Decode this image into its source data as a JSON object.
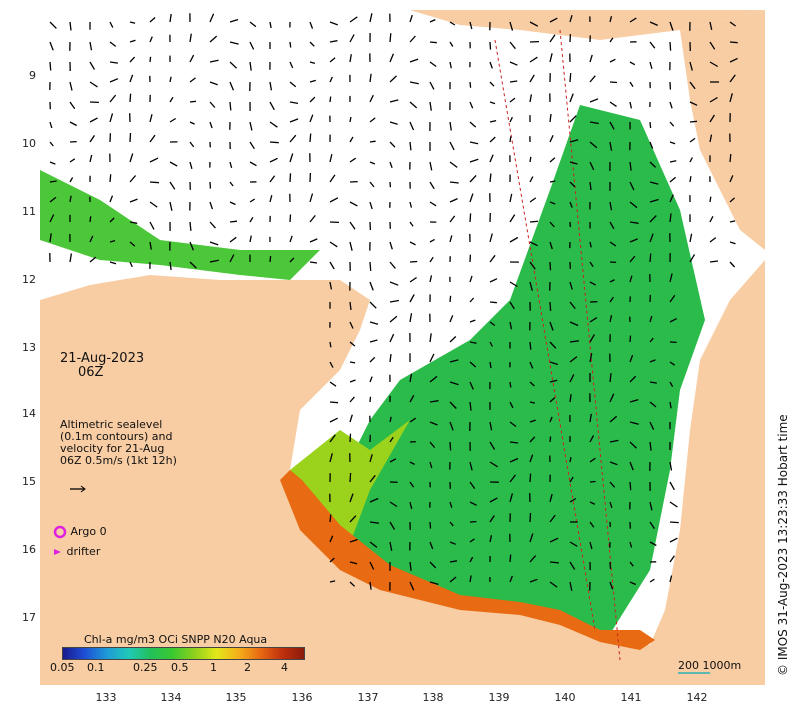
{
  "map": {
    "y_ticks": [
      "9",
      "10",
      "11",
      "12",
      "13",
      "14",
      "15",
      "16",
      "17"
    ],
    "x_ticks": [
      "133",
      "134",
      "135",
      "136",
      "137",
      "138",
      "139",
      "140",
      "141",
      "142"
    ],
    "colors": {
      "land": "#f8cda3",
      "cloud": "#ffffff",
      "chl_low": "#22c05a",
      "chl_mid": "#9ad21c",
      "chl_high": "#e86a12",
      "chl_very_high": "#8a1a0a",
      "argo": "#e020e0",
      "scale": "#5fb8b0"
    }
  },
  "date": "21-Aug-2023",
  "time": "06Z",
  "sealevel_note": "Altimetric sealevel (0.1m contours) and velocity for 21-Aug 06Z 0.5m/s (1kt 12h)",
  "legend": {
    "argo": "Argo 0",
    "drifter": "drifter"
  },
  "colorbar": {
    "title": "Chl-a mg/m3 OCi SNPP N20 Aqua",
    "ticks": [
      "0.05",
      "0.1",
      "0.25",
      "0.5",
      "1",
      "2",
      "4"
    ]
  },
  "scale": "200  1000m",
  "copyright": "© IMOS 31-Aug-2023 13:23:33 Hobart time"
}
